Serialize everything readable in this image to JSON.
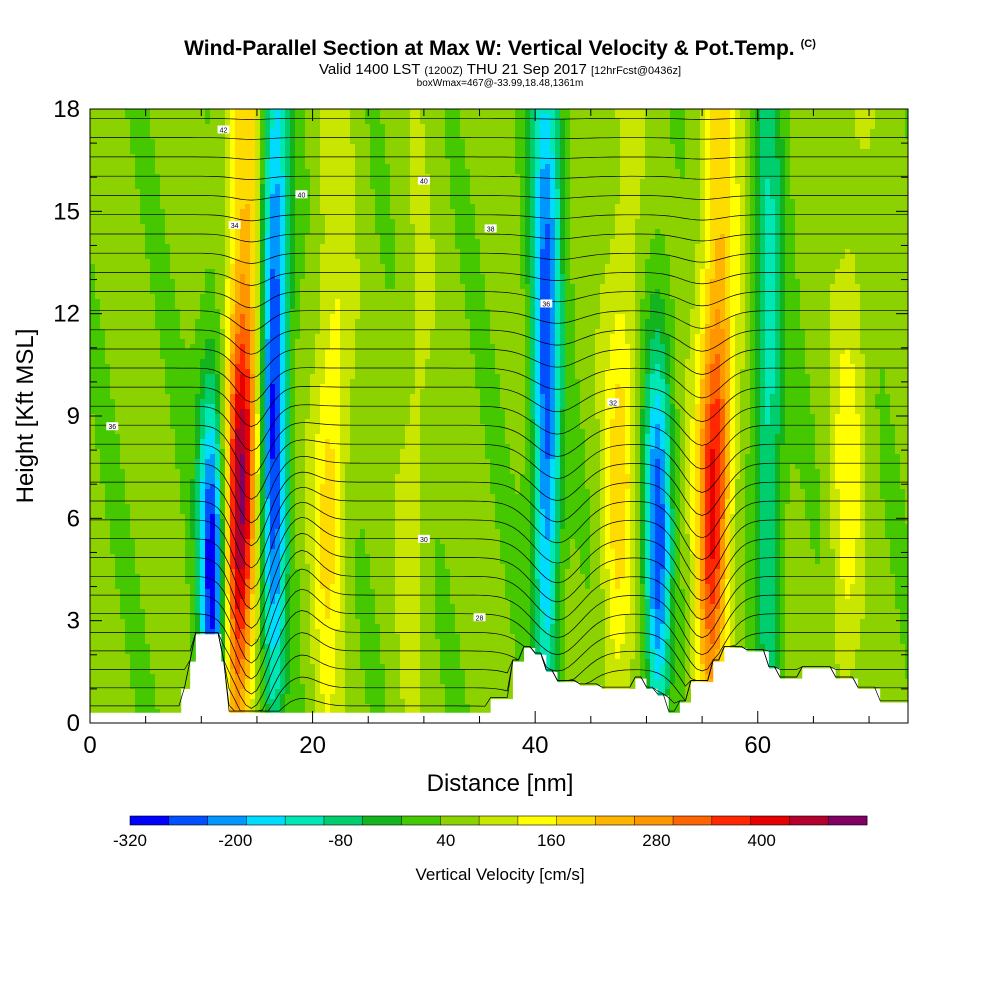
{
  "title": {
    "main": "Wind-Parallel Section at Max W: Vertical Velocity & Pot.Temp.",
    "copyright": "(C)",
    "valid_prefix": "Valid 1400 LST",
    "valid_utc": "(1200Z)",
    "valid_date": "THU 21 Sep 2017",
    "forecast": "[12hrFcst@0436z]",
    "box_info": "boxWmax=467@-33.99,18.48,1361m"
  },
  "chart_data": {
    "type": "heatmap",
    "xlabel": "Distance [nm]",
    "ylabel": "Height [Kft MSL]",
    "xlim": [
      0,
      73.5
    ],
    "ylim": [
      0,
      18
    ],
    "xticks": [
      0,
      20,
      40,
      60
    ],
    "yticks": [
      0,
      3,
      6,
      9,
      12,
      15,
      18
    ],
    "colorbar": {
      "label": "Vertical Velocity [cm/s]",
      "tick_labels": [
        "-320",
        "-200",
        "-80",
        "40",
        "160",
        "280",
        "400"
      ],
      "tick_values": [
        -320,
        -200,
        -80,
        40,
        160,
        280,
        400
      ],
      "range": [
        -320,
        520
      ],
      "colors": [
        "#0000ff",
        "#0050ff",
        "#0096ff",
        "#00dcff",
        "#00e6b4",
        "#00cd6e",
        "#14b41e",
        "#46c800",
        "#8cd200",
        "#c8e600",
        "#ffff00",
        "#ffdc00",
        "#ffb400",
        "#ff9600",
        "#ff6400",
        "#ff2800",
        "#e60000",
        "#b4002d",
        "#800064"
      ]
    },
    "updraft_columns": [
      {
        "x": 13.5,
        "peak_cm_s": 440,
        "z_range": [
          2.0,
          18.0
        ]
      },
      {
        "x": 21.5,
        "peak_cm_s": 140,
        "z_range": [
          3.0,
          18.0
        ]
      },
      {
        "x": 29.0,
        "peak_cm_s": 60,
        "z_range": [
          3.0,
          18.0
        ]
      },
      {
        "x": 47.5,
        "peak_cm_s": 140,
        "z_range": [
          1.5,
          18.0
        ]
      },
      {
        "x": 56.0,
        "peak_cm_s": 360,
        "z_range": [
          1.5,
          18.0
        ]
      },
      {
        "x": 68.0,
        "peak_cm_s": 100,
        "z_range": [
          3.0,
          18.0
        ]
      }
    ],
    "downdraft_columns": [
      {
        "x": 11.0,
        "min_cm_s": -320,
        "z_range": [
          1.5,
          8.0
        ]
      },
      {
        "x": 16.5,
        "min_cm_s": -300,
        "z_range": [
          3.0,
          18.0
        ]
      },
      {
        "x": 41.0,
        "min_cm_s": -260,
        "z_range": [
          2.5,
          18.0
        ]
      },
      {
        "x": 51.0,
        "min_cm_s": -260,
        "z_range": [
          1.5,
          9.0
        ]
      },
      {
        "x": 61.0,
        "min_cm_s": -120,
        "z_range": [
          2.0,
          18.0
        ]
      }
    ],
    "potential_temperature_contours": {
      "labels": [
        "42",
        "40",
        "38",
        "36",
        "34",
        "32",
        "30",
        "28"
      ]
    },
    "terrain_kft": [
      [
        0,
        0.3
      ],
      [
        8,
        0.3
      ],
      [
        8.2,
        1.0
      ],
      [
        9,
        1.8
      ],
      [
        9.5,
        2.6
      ],
      [
        11,
        2.6
      ],
      [
        11.8,
        1.8
      ],
      [
        12.2,
        1.0
      ],
      [
        12.5,
        0.3
      ],
      [
        14,
        0.3
      ],
      [
        35,
        0.3
      ],
      [
        36,
        0.7
      ],
      [
        38,
        1.8
      ],
      [
        39,
        2.2
      ],
      [
        40,
        2.0
      ],
      [
        41,
        1.5
      ],
      [
        42,
        1.2
      ],
      [
        44,
        1.1
      ],
      [
        46,
        1.0
      ],
      [
        48,
        1.0
      ],
      [
        49,
        1.3
      ],
      [
        50,
        1.0
      ],
      [
        51,
        0.8
      ],
      [
        52,
        0.3
      ],
      [
        53,
        0.6
      ],
      [
        54,
        1.2
      ],
      [
        56,
        1.8
      ],
      [
        57,
        2.2
      ],
      [
        59,
        2.1
      ],
      [
        61,
        1.6
      ],
      [
        62,
        1.3
      ],
      [
        63,
        1.3
      ],
      [
        64,
        1.6
      ],
      [
        66,
        1.6
      ],
      [
        67,
        1.3
      ],
      [
        69,
        1.0
      ],
      [
        71,
        0.6
      ],
      [
        73.5,
        0.6
      ]
    ]
  }
}
